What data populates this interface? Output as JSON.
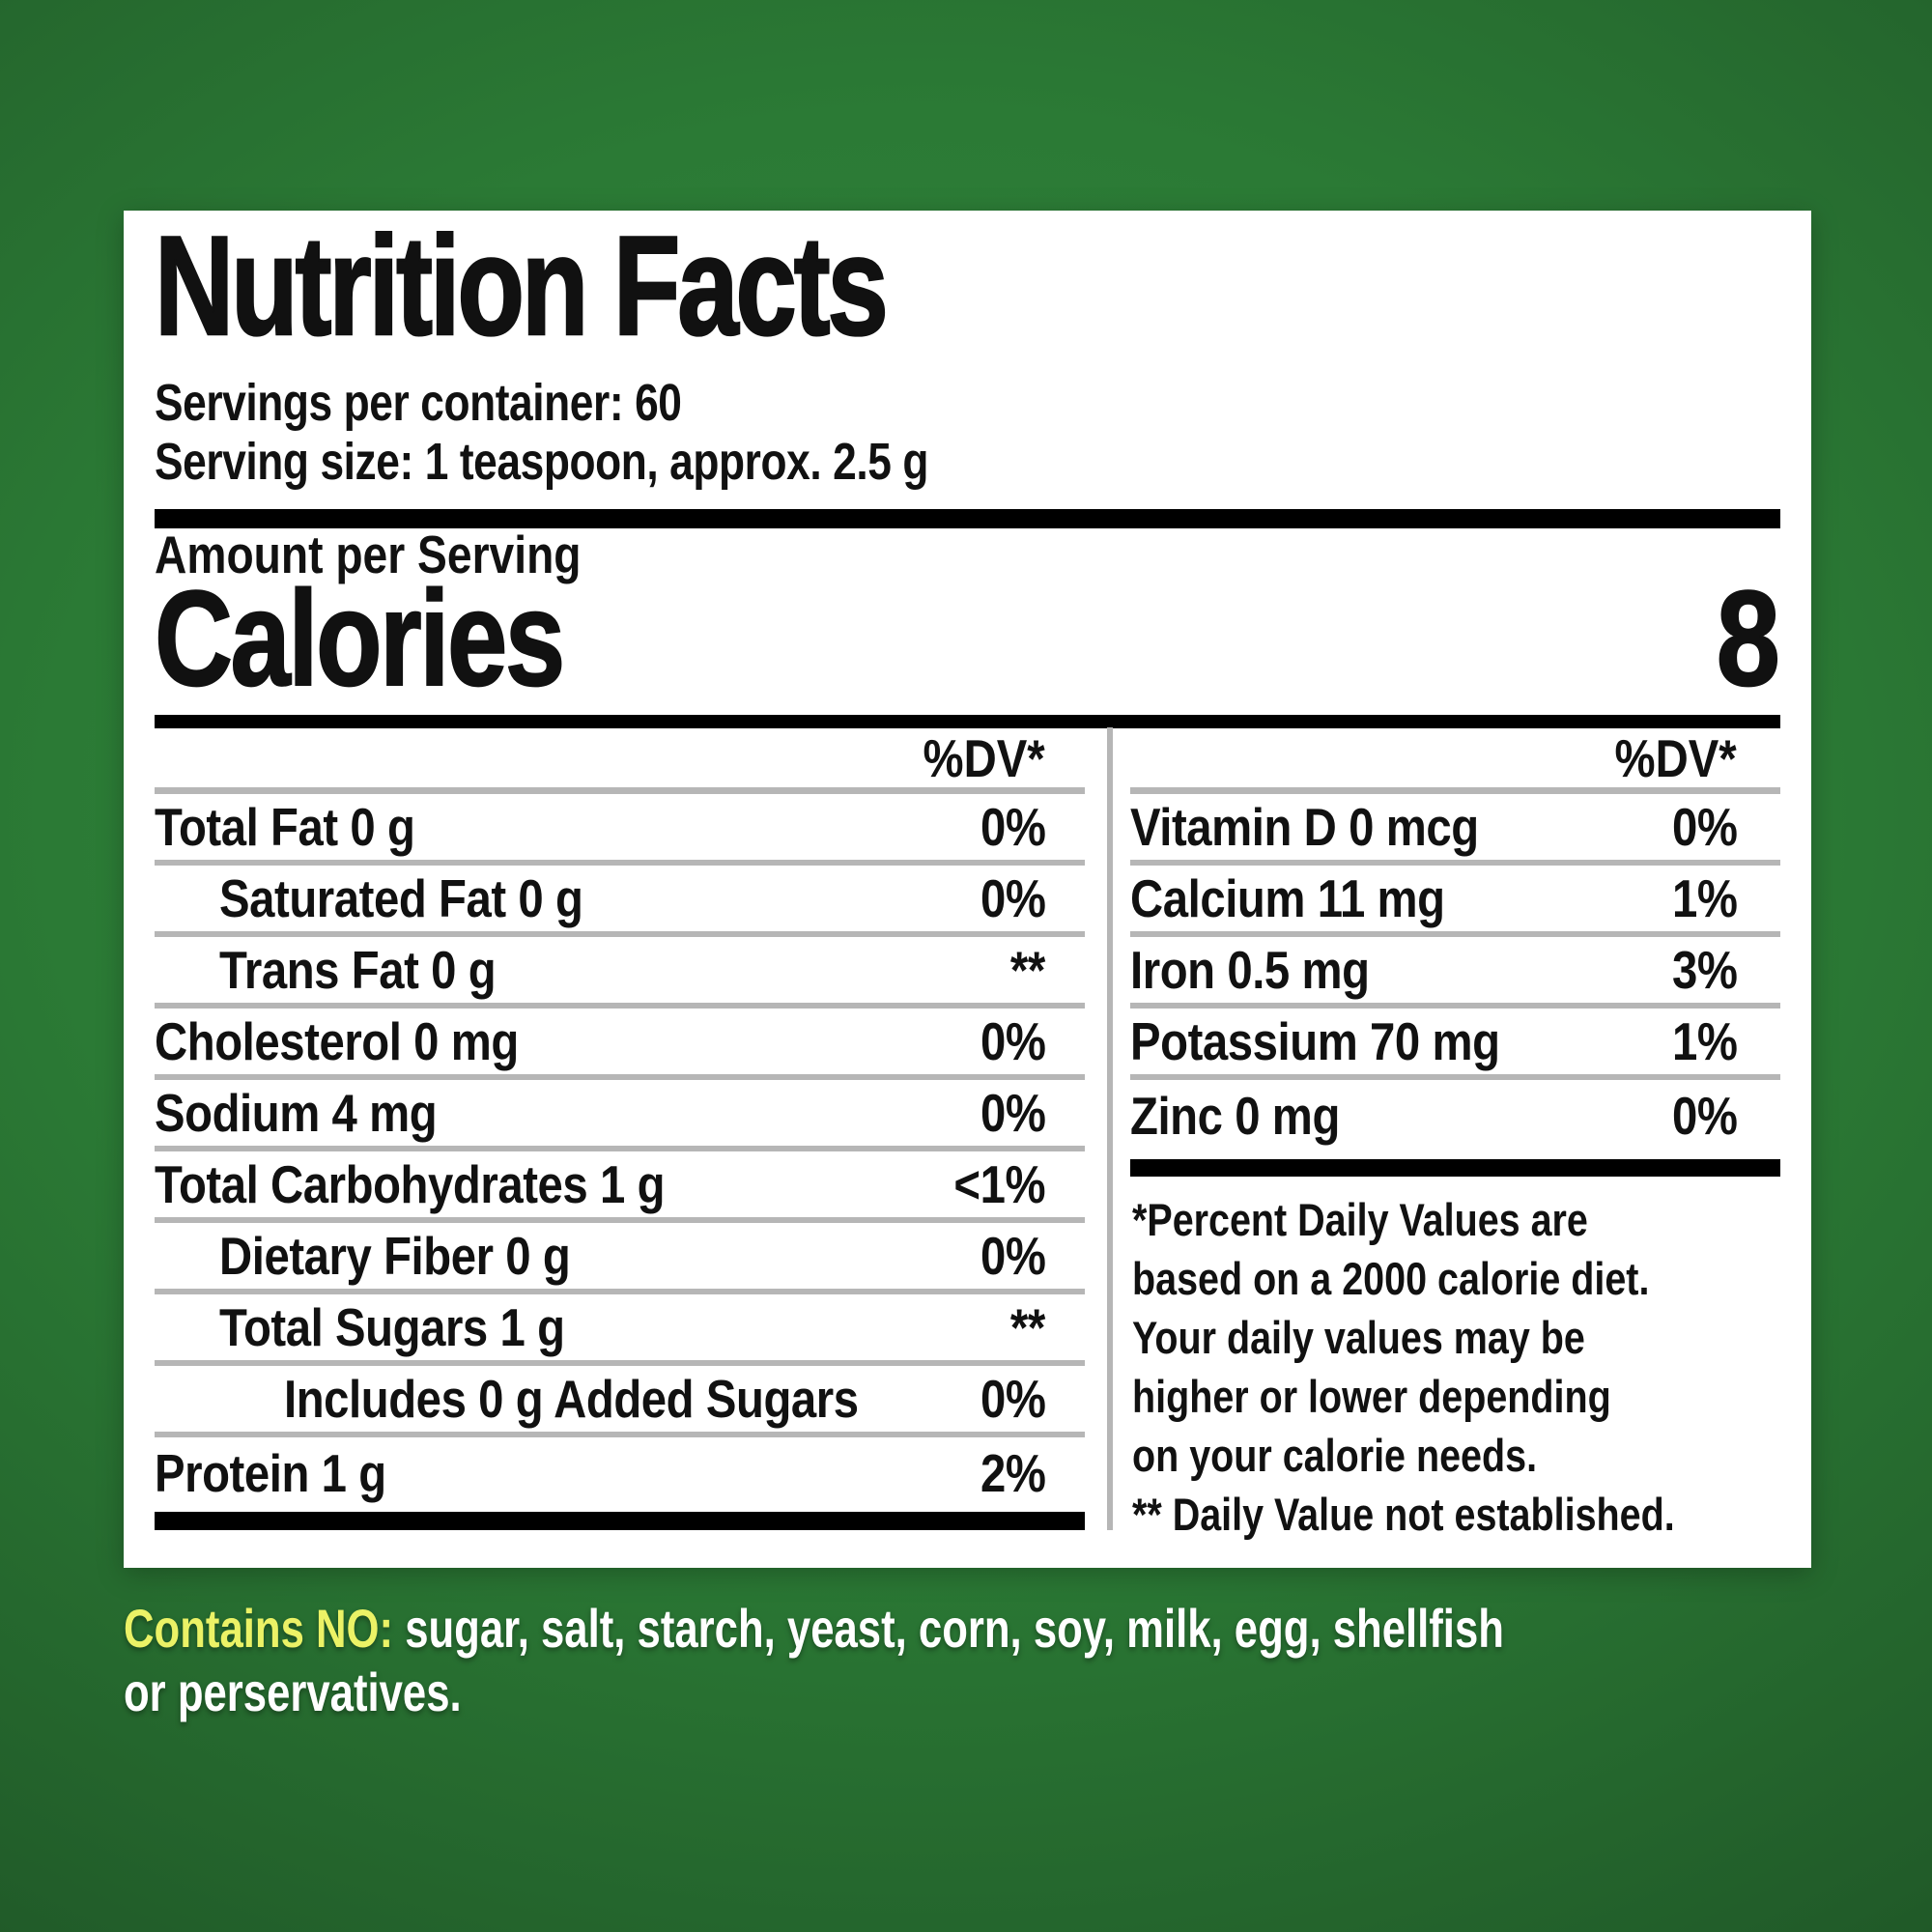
{
  "colors": {
    "background_green_center": "#31873c",
    "background_green_edge": "#173f1d",
    "panel_white": "#ffffff",
    "text_black": "#111111",
    "rule_gray": "#b6b6b6",
    "bar_black": "#000000",
    "contains_no_yellow": "#ebf266",
    "bottom_text_white": "#ffffff"
  },
  "label": {
    "title": "Nutrition Facts",
    "servings_per_container": "Servings per container: 60",
    "serving_size": "Serving size: 1 teaspoon, approx. 2.5 g",
    "amount_per_serving": "Amount per Serving",
    "calories_word": "Calories",
    "calories_value": "8",
    "left_dv_header": "%DV*",
    "right_dv_header": "%DV*",
    "left_rows": [
      {
        "label": "Total Fat 0 g",
        "value": "0%"
      },
      {
        "label": "Saturated Fat 0 g",
        "value": "0%"
      },
      {
        "label": "Trans Fat 0 g",
        "value": "**"
      },
      {
        "label": "Cholesterol 0 mg",
        "value": "0%"
      },
      {
        "label": "Sodium 4 mg",
        "value": "0%"
      },
      {
        "label": "Total Carbohydrates 1 g",
        "value": "<1%"
      },
      {
        "label": "Dietary Fiber 0 g",
        "value": "0%"
      },
      {
        "label": "Total Sugars 1 g",
        "value": "**"
      },
      {
        "label": "Includes 0 g Added Sugars",
        "value": "0%"
      },
      {
        "label": "Protein 1 g",
        "value": "2%"
      }
    ],
    "right_rows": [
      {
        "label": "Vitamin D 0 mcg",
        "value": "0%"
      },
      {
        "label": "Calcium 11 mg",
        "value": "1%"
      },
      {
        "label": "Iron 0.5 mg",
        "value": "3%"
      },
      {
        "label": "Potassium 70 mg",
        "value": "1%"
      },
      {
        "label": "Zinc 0 mg",
        "value": "0%"
      }
    ],
    "footnote_lines": [
      "*Percent Daily Values are",
      "based on a 2000 calorie diet.",
      "Your daily values may be",
      "higher or lower depending",
      "on your calorie needs.",
      "** Daily Value not established."
    ]
  },
  "bottom_note": {
    "highlight": "Contains NO:",
    "line1_rest": " sugar, salt, starch, yeast, corn, soy, milk, egg, shellfish",
    "line2": "or perservatives."
  }
}
